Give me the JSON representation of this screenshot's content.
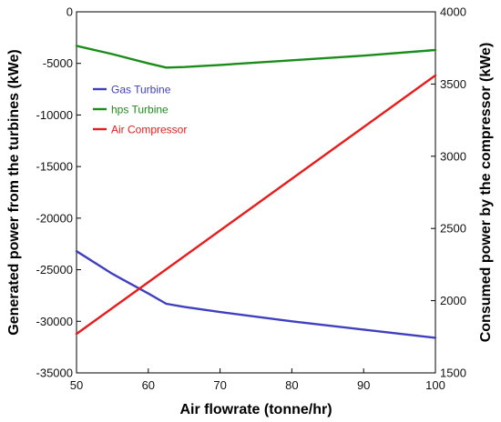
{
  "chart_data": {
    "type": "line",
    "title": "",
    "xlabel": "Air flowrate (tonne/hr)",
    "ylabel_left": "Generated power from the turbines (kWe)",
    "ylabel_right": "Consumed power by the compressor (kWe)",
    "xlim": [
      50,
      100
    ],
    "ylim_left": [
      -35000,
      0
    ],
    "ylim_right": [
      1500,
      4000
    ],
    "x_ticks": [
      "50",
      "60",
      "70",
      "80",
      "90",
      "100"
    ],
    "left_ticks": [
      "0",
      "-5000",
      "-10000",
      "-15000",
      "-20000",
      "-25000",
      "-30000",
      "-35000"
    ],
    "right_ticks": [
      "1500",
      "2000",
      "2500",
      "3000",
      "3500",
      "4000"
    ],
    "grid": false,
    "legend_position": "upper-left",
    "series": [
      {
        "name": "Gas Turbine",
        "axis": "left",
        "color": "#3f3fbf",
        "x": [
          50,
          55,
          60,
          62.5,
          65,
          70,
          80,
          90,
          100
        ],
        "y": [
          -23200,
          -25400,
          -27300,
          -28300,
          -28600,
          -29100,
          -30000,
          -30800,
          -31600
        ]
      },
      {
        "name": "hps Turbine",
        "axis": "left",
        "color": "#1a8c1a",
        "x": [
          50,
          55,
          60,
          62.5,
          65,
          70,
          80,
          90,
          100
        ],
        "y": [
          -3300,
          -4100,
          -5000,
          -5400,
          -5350,
          -5150,
          -4700,
          -4250,
          -3700
        ]
      },
      {
        "name": "Air Compressor",
        "axis": "right",
        "color": "#e81c1c",
        "x": [
          50,
          100
        ],
        "y": [
          1770,
          3560
        ]
      }
    ]
  }
}
